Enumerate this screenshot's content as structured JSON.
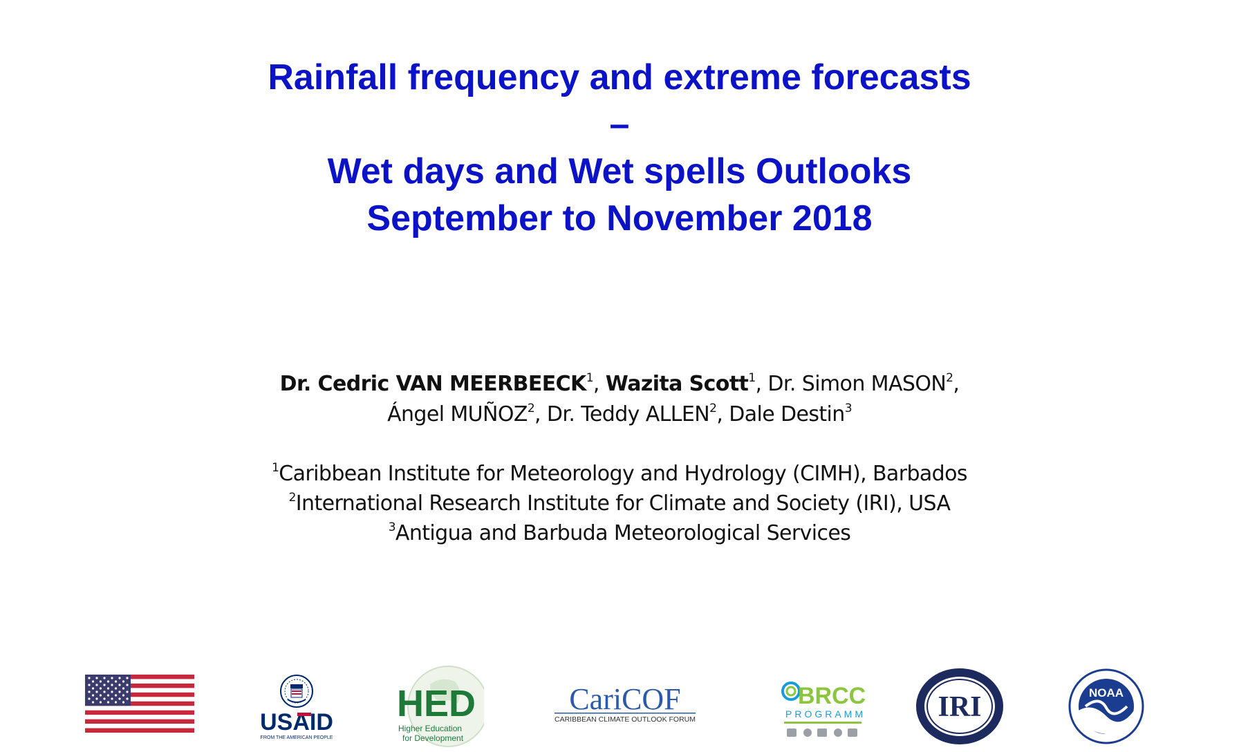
{
  "title": {
    "line1": "Rainfall frequency and extreme forecasts",
    "line2": "–",
    "line3": "Wet days and Wet spells Outlooks",
    "line4": "September to November 2018"
  },
  "authors": {
    "a1_name": "Dr. Cedric VAN MEERBEECK",
    "a1_sup": "1",
    "a2_name": "Wazita Scott",
    "a2_sup": "1",
    "a3_name": "Dr. Simon MASON",
    "a3_sup": "2",
    "a4_name": "Ángel MUÑOZ",
    "a4_sup": "2",
    "a5_name": "Dr. Teddy ALLEN",
    "a5_sup": "2",
    "a6_name": "Dale Destin",
    "a6_sup": "3"
  },
  "affiliations": [
    {
      "sup": "1",
      "text": "Caribbean Institute for Meteorology and Hydrology (CIMH), Barbados"
    },
    {
      "sup": "2",
      "text": "International Research Institute for Climate and Society (IRI), USA"
    },
    {
      "sup": "3",
      "text": "Antigua and Barbuda Meteorological Services"
    }
  ],
  "logos": {
    "usaid_text": "USAID",
    "usaid_tagline": "FROM THE AMERICAN PEOPLE",
    "hed_text": "HED",
    "hed_sub1": "Higher Education",
    "hed_sub2": "for Development",
    "caricof_text": "CariCOF",
    "caricof_sub": "CARIBBEAN CLIMATE OUTLOOK FORUM",
    "brccc_text": "BRCCC",
    "brccc_sub": "PROGRAMME",
    "iri_text": "IRI",
    "noaa_text": "NOAA"
  },
  "colors": {
    "title": "#0c13c6",
    "usaid_blue": "#002a6c",
    "usaid_red": "#c2113a",
    "hed_green": "#1f7a3a",
    "caricof_blue": "#2a5aa8",
    "brccc_green": "#8cc63f",
    "brccc_blue": "#1b9bd7",
    "iri_navy": "#1c2a5e",
    "noaa_blue": "#1a3d8f"
  }
}
